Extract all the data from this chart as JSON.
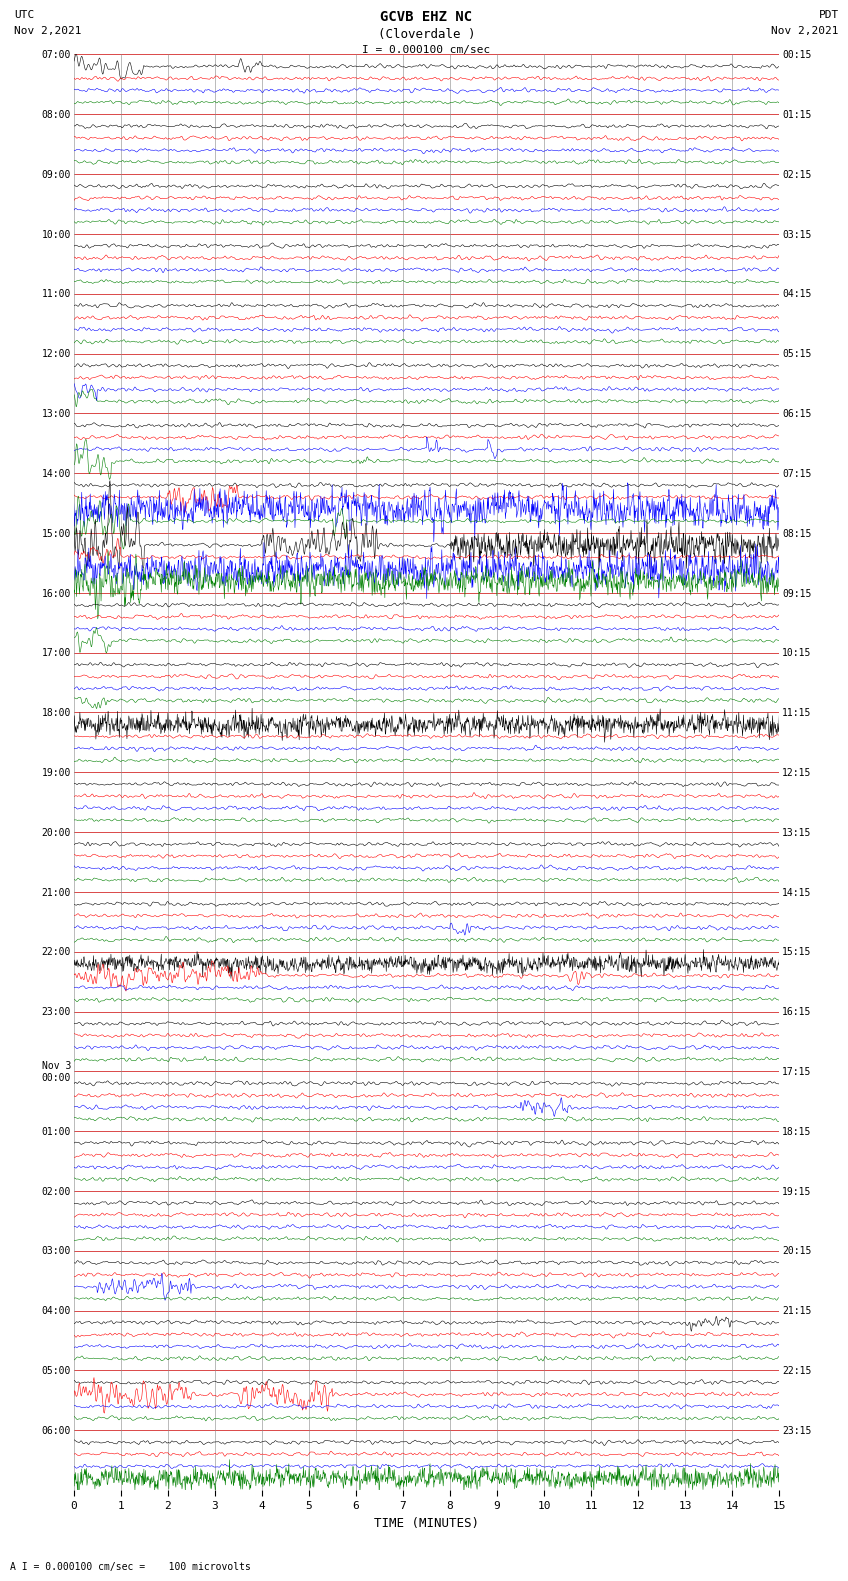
{
  "title_line1": "GCVB EHZ NC",
  "title_line2": "(Cloverdale )",
  "scale_label": "I = 0.000100 cm/sec",
  "scale_bottom": "A I = 0.000100 cm/sec =    100 microvolts",
  "utc_label": "UTC\nNov 2,2021",
  "pdt_label": "PDT\nNov 2,2021",
  "xlabel": "TIME (MINUTES)",
  "left_times": [
    "07:00",
    "08:00",
    "09:00",
    "10:00",
    "11:00",
    "12:00",
    "13:00",
    "14:00",
    "15:00",
    "16:00",
    "17:00",
    "18:00",
    "19:00",
    "20:00",
    "21:00",
    "22:00",
    "23:00",
    "Nov 3\n00:00",
    "01:00",
    "02:00",
    "03:00",
    "04:00",
    "05:00",
    "06:00"
  ],
  "right_times": [
    "00:15",
    "01:15",
    "02:15",
    "03:15",
    "04:15",
    "05:15",
    "06:15",
    "07:15",
    "08:15",
    "09:15",
    "10:15",
    "11:15",
    "12:15",
    "13:15",
    "14:15",
    "15:15",
    "16:15",
    "17:15",
    "18:15",
    "19:15",
    "20:15",
    "21:15",
    "22:15",
    "23:15"
  ],
  "n_rows": 24,
  "n_cols": 4,
  "x_ticks": [
    0,
    1,
    2,
    3,
    4,
    5,
    6,
    7,
    8,
    9,
    10,
    11,
    12,
    13,
    14,
    15
  ],
  "bg_color": "#ffffff",
  "line_colors": [
    "black",
    "red",
    "blue",
    "green"
  ],
  "grid_color": "#cc0000"
}
